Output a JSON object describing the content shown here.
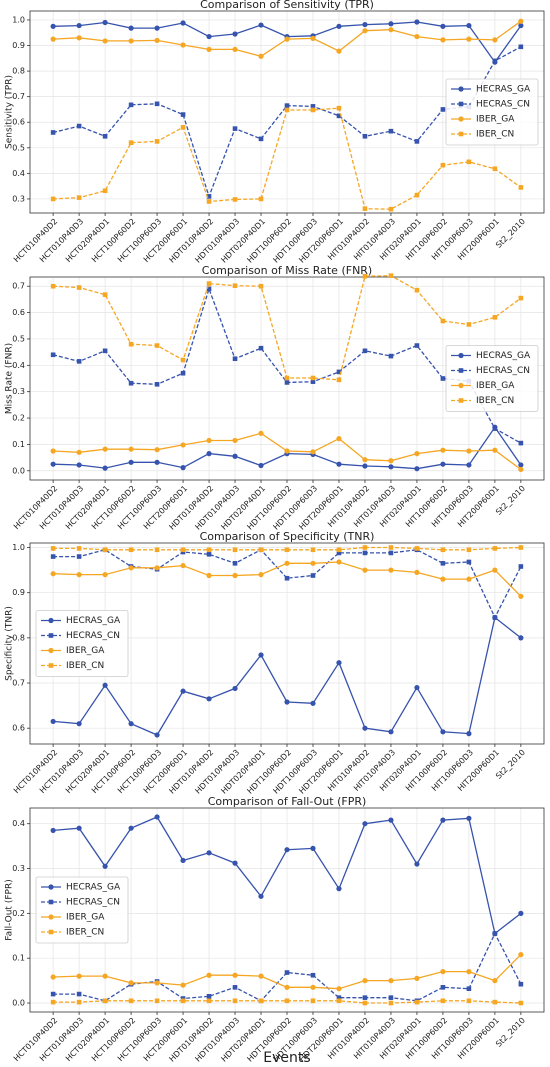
{
  "chart_data": [
    {
      "type": "line",
      "title": "Comparison of Sensitivity (TPR)",
      "ylabel": "Sensitivity (TPR)",
      "categories": [
        "HCT010P40D2",
        "HCT010P40D3",
        "HCT020P40D1",
        "HCT100P60D2",
        "HCT100P60D3",
        "HCT200P60D1",
        "HDT010P40D2",
        "HDT010P40D3",
        "HDT020P40D1",
        "HDT100P60D2",
        "HDT100P60D3",
        "HDT200P60D1",
        "HIT010P40D2",
        "HIT010P40D3",
        "HIT020P40D1",
        "HIT100P60D2",
        "HIT100P60D3",
        "HIT200P60D1",
        "St2_2010"
      ],
      "ylim": [
        0.245,
        1.035
      ],
      "yticks": [
        0.3,
        0.4,
        0.5,
        0.6,
        0.7,
        0.8,
        0.9,
        {
          "value": 1,
          "label": "1.0"
        }
      ],
      "grid": true,
      "legend": "center right",
      "series": [
        {
          "name": "HECRAS_GA",
          "color": "#3653ad",
          "linestyle": "solid",
          "marker": "circle",
          "values": [
            0.975,
            0.978,
            0.99,
            0.968,
            0.968,
            0.988,
            0.935,
            0.945,
            0.98,
            0.935,
            0.938,
            0.975,
            0.982,
            0.985,
            0.992,
            0.975,
            0.978,
            0.835,
            0.978
          ]
        },
        {
          "name": "HECRAS_CN",
          "color": "#3653ad",
          "linestyle": "dashed",
          "marker": "square",
          "values": [
            0.56,
            0.585,
            0.545,
            0.668,
            0.672,
            0.63,
            0.31,
            0.575,
            0.535,
            0.665,
            0.662,
            0.625,
            0.545,
            0.565,
            0.525,
            0.65,
            0.66,
            0.84,
            0.895
          ]
        },
        {
          "name": "IBER_GA",
          "color": "#f5a623",
          "linestyle": "solid",
          "marker": "circle",
          "values": [
            0.925,
            0.93,
            0.918,
            0.918,
            0.92,
            0.902,
            0.885,
            0.885,
            0.858,
            0.925,
            0.928,
            0.878,
            0.958,
            0.962,
            0.935,
            0.922,
            0.925,
            0.922,
            0.995
          ]
        },
        {
          "name": "IBER_CN",
          "color": "#f5a623",
          "linestyle": "dashed",
          "marker": "square",
          "values": [
            0.3,
            0.305,
            0.332,
            0.52,
            0.525,
            0.58,
            0.29,
            0.298,
            0.3,
            0.648,
            0.648,
            0.655,
            0.262,
            0.26,
            0.315,
            0.432,
            0.445,
            0.418,
            0.345
          ]
        }
      ]
    },
    {
      "type": "line",
      "title": "Comparison of Miss Rate (FNR)",
      "ylabel": "Miss Rate (FNR)",
      "categories": [
        "HCT010P40D2",
        "HCT010P40D3",
        "HCT020P40D1",
        "HCT100P60D2",
        "HCT100P60D3",
        "HCT200P60D1",
        "HDT010P40D2",
        "HDT010P40D3",
        "HDT020P40D1",
        "HDT100P60D2",
        "HDT100P60D3",
        "HDT200P60D1",
        "HIT010P40D2",
        "HIT010P40D3",
        "HIT020P40D1",
        "HIT100P60D2",
        "HIT100P60D3",
        "HIT200P60D1",
        "St2_2010"
      ],
      "ylim": [
        -0.035,
        0.735
      ],
      "yticks": [
        {
          "value": 0,
          "label": "0.0"
        },
        0.1,
        0.2,
        0.3,
        0.4,
        0.5,
        0.6,
        0.7
      ],
      "grid": true,
      "legend": "center right",
      "series": [
        {
          "name": "HECRAS_GA",
          "color": "#3653ad",
          "linestyle": "solid",
          "marker": "circle",
          "values": [
            0.025,
            0.022,
            0.01,
            0.032,
            0.032,
            0.012,
            0.065,
            0.055,
            0.02,
            0.065,
            0.062,
            0.025,
            0.018,
            0.015,
            0.008,
            0.025,
            0.022,
            0.165,
            0.022
          ]
        },
        {
          "name": "HECRAS_CN",
          "color": "#3653ad",
          "linestyle": "dashed",
          "marker": "square",
          "values": [
            0.44,
            0.415,
            0.455,
            0.332,
            0.328,
            0.37,
            0.69,
            0.425,
            0.465,
            0.335,
            0.338,
            0.375,
            0.455,
            0.435,
            0.475,
            0.35,
            0.34,
            0.16,
            0.105
          ]
        },
        {
          "name": "IBER_GA",
          "color": "#f5a623",
          "linestyle": "solid",
          "marker": "circle",
          "values": [
            0.075,
            0.07,
            0.082,
            0.082,
            0.08,
            0.098,
            0.115,
            0.115,
            0.142,
            0.075,
            0.072,
            0.122,
            0.042,
            0.038,
            0.065,
            0.078,
            0.075,
            0.078,
            0.005
          ]
        },
        {
          "name": "IBER_CN",
          "color": "#f5a623",
          "linestyle": "dashed",
          "marker": "square",
          "values": [
            0.7,
            0.695,
            0.668,
            0.48,
            0.475,
            0.42,
            0.71,
            0.702,
            0.7,
            0.352,
            0.352,
            0.345,
            0.738,
            0.74,
            0.685,
            0.568,
            0.555,
            0.582,
            0.655
          ]
        }
      ]
    },
    {
      "type": "line",
      "title": "Comparison of Specificity (TNR)",
      "ylabel": "Specificity (TNR)",
      "categories": [
        "HCT010P40D2",
        "HCT010P40D3",
        "HCT020P40D1",
        "HCT100P60D2",
        "HCT100P60D3",
        "HCT200P60D1",
        "HDT010P40D2",
        "HDT010P40D3",
        "HDT020P40D1",
        "HDT100P60D2",
        "HDT100P60D3",
        "HDT200P60D1",
        "HIT010P40D2",
        "HIT010P40D3",
        "HIT020P40D1",
        "HIT100P60D2",
        "HIT100P60D3",
        "HIT200P60D1",
        "St2_2010"
      ],
      "ylim": [
        0.565,
        1.01
      ],
      "yticks": [
        0.6,
        0.7,
        0.8,
        0.9,
        {
          "value": 1,
          "label": "1.0"
        }
      ],
      "grid": true,
      "legend": "center left",
      "series": [
        {
          "name": "HECRAS_GA",
          "color": "#3653ad",
          "linestyle": "solid",
          "marker": "circle",
          "values": [
            0.615,
            0.61,
            0.695,
            0.61,
            0.585,
            0.682,
            0.665,
            0.688,
            0.762,
            0.658,
            0.655,
            0.745,
            0.6,
            0.592,
            0.69,
            0.592,
            0.588,
            0.845,
            0.8
          ]
        },
        {
          "name": "HECRAS_CN",
          "color": "#3653ad",
          "linestyle": "dashed",
          "marker": "square",
          "values": [
            0.98,
            0.98,
            0.995,
            0.958,
            0.952,
            0.99,
            0.985,
            0.965,
            0.995,
            0.932,
            0.938,
            0.988,
            0.988,
            0.988,
            0.995,
            0.965,
            0.968,
            0.845,
            0.958
          ]
        },
        {
          "name": "IBER_GA",
          "color": "#f5a623",
          "linestyle": "solid",
          "marker": "circle",
          "values": [
            0.942,
            0.94,
            0.94,
            0.955,
            0.955,
            0.96,
            0.938,
            0.938,
            0.94,
            0.965,
            0.965,
            0.968,
            0.95,
            0.95,
            0.945,
            0.93,
            0.93,
            0.95,
            0.892
          ]
        },
        {
          "name": "IBER_CN",
          "color": "#f5a623",
          "linestyle": "dashed",
          "marker": "square",
          "values": [
            0.998,
            0.998,
            0.995,
            0.995,
            0.995,
            0.995,
            0.995,
            0.995,
            0.995,
            0.995,
            0.995,
            0.995,
            1.0,
            1.0,
            0.998,
            0.995,
            0.995,
            0.998,
            1.0
          ]
        }
      ]
    },
    {
      "type": "line",
      "title": "Comparison of Fall-Out (FPR)",
      "ylabel": "Fall-Out (FPR)",
      "xlabel": "Events",
      "categories": [
        "HCT010P40D2",
        "HCT010P40D3",
        "HCT020P40D1",
        "HCT100P60D2",
        "HCT100P60D3",
        "HCT200P60D1",
        "HDT010P40D2",
        "HDT010P40D3",
        "HDT020P40D1",
        "HDT100P60D2",
        "HDT100P60D3",
        "HDT200P60D1",
        "HIT010P40D2",
        "HIT010P40D3",
        "HIT020P40D1",
        "HIT100P60D2",
        "HIT100P60D3",
        "HIT200P60D1",
        "St2_2010"
      ],
      "ylim": [
        -0.02,
        0.435
      ],
      "yticks": [
        {
          "value": 0,
          "label": "0.0"
        },
        0.1,
        0.2,
        0.3,
        0.4
      ],
      "grid": true,
      "legend": "center left",
      "series": [
        {
          "name": "HECRAS_GA",
          "color": "#3653ad",
          "linestyle": "solid",
          "marker": "circle",
          "values": [
            0.385,
            0.39,
            0.305,
            0.39,
            0.415,
            0.318,
            0.335,
            0.312,
            0.238,
            0.342,
            0.345,
            0.255,
            0.4,
            0.408,
            0.31,
            0.408,
            0.412,
            0.155,
            0.2
          ]
        },
        {
          "name": "HECRAS_CN",
          "color": "#3653ad",
          "linestyle": "dashed",
          "marker": "square",
          "values": [
            0.02,
            0.02,
            0.005,
            0.042,
            0.048,
            0.01,
            0.015,
            0.035,
            0.005,
            0.068,
            0.062,
            0.012,
            0.012,
            0.012,
            0.005,
            0.035,
            0.032,
            0.155,
            0.042
          ]
        },
        {
          "name": "IBER_GA",
          "color": "#f5a623",
          "linestyle": "solid",
          "marker": "circle",
          "values": [
            0.058,
            0.06,
            0.06,
            0.045,
            0.045,
            0.04,
            0.062,
            0.062,
            0.06,
            0.035,
            0.035,
            0.032,
            0.05,
            0.05,
            0.055,
            0.07,
            0.07,
            0.05,
            0.108
          ]
        },
        {
          "name": "IBER_CN",
          "color": "#f5a623",
          "linestyle": "dashed",
          "marker": "square",
          "values": [
            0.002,
            0.002,
            0.005,
            0.005,
            0.005,
            0.005,
            0.005,
            0.005,
            0.005,
            0.005,
            0.005,
            0.005,
            0.0,
            0.0,
            0.002,
            0.005,
            0.005,
            0.002,
            0.0
          ]
        }
      ]
    }
  ]
}
